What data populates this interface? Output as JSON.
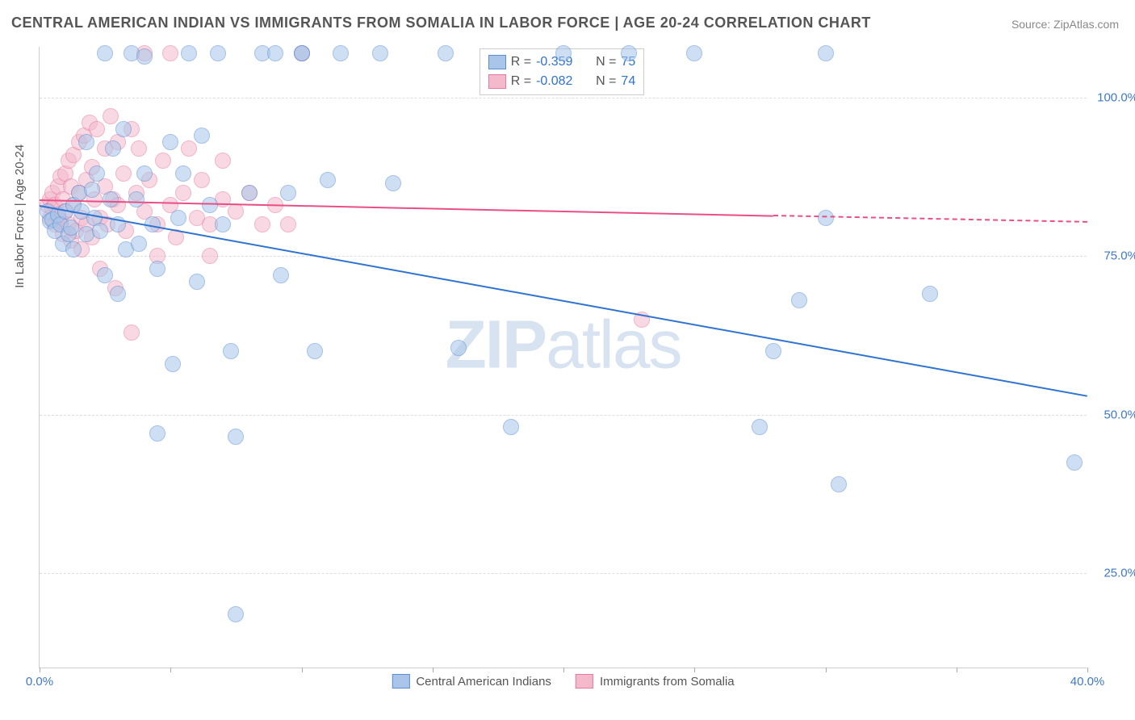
{
  "title": "CENTRAL AMERICAN INDIAN VS IMMIGRANTS FROM SOMALIA IN LABOR FORCE | AGE 20-24 CORRELATION CHART",
  "source": "Source: ZipAtlas.com",
  "watermark_bold": "ZIP",
  "watermark_light": "atlas",
  "y_axis_label": "In Labor Force | Age 20-24",
  "chart": {
    "type": "scatter",
    "xlim": [
      0,
      40
    ],
    "ylim": [
      10,
      108
    ],
    "x_ticks": [
      0,
      5,
      10,
      15,
      20,
      25,
      30,
      35,
      40
    ],
    "x_tick_labels": {
      "0": "0.0%",
      "40": "40.0%"
    },
    "y_ticks": [
      25,
      50,
      75,
      100
    ],
    "y_tick_labels": {
      "25": "25.0%",
      "50": "50.0%",
      "75": "75.0%",
      "100": "100.0%"
    },
    "y_tick_color": "#3e78c7",
    "x_tick_color": "#3e78c7",
    "grid_color": "#dddddd",
    "background": "#ffffff",
    "marker_radius": 10,
    "marker_opacity": 0.55,
    "series": [
      {
        "name": "Central American Indians",
        "fill": "#a9c6ea",
        "stroke": "#5a8fd6",
        "line_color": "#2f73d1",
        "R": "-0.359",
        "N": "75",
        "trend": {
          "x1": 0,
          "y1": 83,
          "x2": 40,
          "y2": 53
        },
        "points": [
          [
            0.3,
            82
          ],
          [
            0.4,
            80.5
          ],
          [
            0.5,
            80.8
          ],
          [
            0.6,
            79
          ],
          [
            0.7,
            81.5
          ],
          [
            0.8,
            80
          ],
          [
            0.9,
            77
          ],
          [
            1.0,
            82
          ],
          [
            1.1,
            78.5
          ],
          [
            1.2,
            79.5
          ],
          [
            1.3,
            83
          ],
          [
            1.3,
            76
          ],
          [
            1.5,
            85
          ],
          [
            1.6,
            82
          ],
          [
            1.8,
            93
          ],
          [
            1.8,
            78.5
          ],
          [
            2.0,
            85.5
          ],
          [
            2.1,
            81
          ],
          [
            2.2,
            88
          ],
          [
            2.3,
            79
          ],
          [
            2.5,
            107
          ],
          [
            2.5,
            72
          ],
          [
            2.7,
            84
          ],
          [
            2.8,
            92
          ],
          [
            3.0,
            80
          ],
          [
            3.0,
            69
          ],
          [
            3.2,
            95
          ],
          [
            3.3,
            76
          ],
          [
            3.5,
            107
          ],
          [
            3.7,
            84
          ],
          [
            3.8,
            77
          ],
          [
            4.0,
            88
          ],
          [
            4.0,
            106.5
          ],
          [
            4.3,
            80
          ],
          [
            4.5,
            73
          ],
          [
            4.5,
            47
          ],
          [
            5.0,
            93
          ],
          [
            5.1,
            58
          ],
          [
            5.3,
            81
          ],
          [
            5.5,
            88
          ],
          [
            5.7,
            107
          ],
          [
            6.0,
            71
          ],
          [
            6.2,
            94
          ],
          [
            6.5,
            83
          ],
          [
            6.8,
            107
          ],
          [
            7.0,
            80
          ],
          [
            7.3,
            60
          ],
          [
            7.5,
            46.5
          ],
          [
            7.5,
            18.5
          ],
          [
            8.0,
            85
          ],
          [
            8.5,
            107
          ],
          [
            9.0,
            107
          ],
          [
            9.2,
            72
          ],
          [
            9.5,
            85
          ],
          [
            10.0,
            107
          ],
          [
            10.0,
            107
          ],
          [
            10.5,
            60
          ],
          [
            11.0,
            87
          ],
          [
            11.5,
            107
          ],
          [
            13.0,
            107
          ],
          [
            13.5,
            86.5
          ],
          [
            15.5,
            107
          ],
          [
            16.0,
            60.5
          ],
          [
            18.0,
            48
          ],
          [
            20.0,
            107
          ],
          [
            22.5,
            107
          ],
          [
            25.0,
            107
          ],
          [
            27.5,
            48
          ],
          [
            28.0,
            60
          ],
          [
            29.0,
            68
          ],
          [
            30.5,
            39
          ],
          [
            30.0,
            81
          ],
          [
            30.0,
            107
          ],
          [
            34.0,
            69
          ],
          [
            39.5,
            42.5
          ]
        ]
      },
      {
        "name": "Immigrants from Somalia",
        "fill": "#f4b9cb",
        "stroke": "#e77aa0",
        "line_color": "#e94f86",
        "R": "-0.082",
        "N": "74",
        "trend": {
          "x1": 0,
          "y1": 84,
          "x2": 28,
          "y2": 81.5
        },
        "trend_dash": {
          "x1": 28,
          "y1": 81.5,
          "x2": 40,
          "y2": 80.5
        },
        "points": [
          [
            0.3,
            83
          ],
          [
            0.4,
            81
          ],
          [
            0.4,
            84
          ],
          [
            0.5,
            82.5
          ],
          [
            0.5,
            85
          ],
          [
            0.6,
            80
          ],
          [
            0.6,
            83
          ],
          [
            0.7,
            86
          ],
          [
            0.7,
            81
          ],
          [
            0.8,
            87.5
          ],
          [
            0.8,
            80.5
          ],
          [
            0.9,
            84
          ],
          [
            0.9,
            78.5
          ],
          [
            1.0,
            88
          ],
          [
            1.0,
            82
          ],
          [
            1.1,
            90
          ],
          [
            1.1,
            80
          ],
          [
            1.2,
            86
          ],
          [
            1.2,
            77.5
          ],
          [
            1.3,
            91
          ],
          [
            1.3,
            83
          ],
          [
            1.4,
            79
          ],
          [
            1.5,
            93
          ],
          [
            1.5,
            85
          ],
          [
            1.6,
            81
          ],
          [
            1.6,
            76
          ],
          [
            1.7,
            94
          ],
          [
            1.8,
            87
          ],
          [
            1.8,
            80
          ],
          [
            1.9,
            96
          ],
          [
            2.0,
            89
          ],
          [
            2.0,
            78
          ],
          [
            2.1,
            84
          ],
          [
            2.2,
            95
          ],
          [
            2.3,
            81
          ],
          [
            2.3,
            73
          ],
          [
            2.5,
            92
          ],
          [
            2.5,
            86
          ],
          [
            2.6,
            80
          ],
          [
            2.7,
            97
          ],
          [
            2.8,
            84
          ],
          [
            2.9,
            70
          ],
          [
            3.0,
            93
          ],
          [
            3.0,
            83
          ],
          [
            3.2,
            88
          ],
          [
            3.3,
            79
          ],
          [
            3.5,
            95
          ],
          [
            3.5,
            63
          ],
          [
            3.7,
            85
          ],
          [
            3.8,
            92
          ],
          [
            4.0,
            82
          ],
          [
            4.0,
            107
          ],
          [
            4.2,
            87
          ],
          [
            4.5,
            80
          ],
          [
            4.5,
            75
          ],
          [
            4.7,
            90
          ],
          [
            5.0,
            83
          ],
          [
            5.0,
            107
          ],
          [
            5.2,
            78
          ],
          [
            5.5,
            85
          ],
          [
            5.7,
            92
          ],
          [
            6.0,
            81
          ],
          [
            6.2,
            87
          ],
          [
            6.5,
            80
          ],
          [
            6.5,
            75
          ],
          [
            7.0,
            84
          ],
          [
            7.0,
            90
          ],
          [
            7.5,
            82
          ],
          [
            8.0,
            85
          ],
          [
            8.5,
            80
          ],
          [
            9.0,
            83
          ],
          [
            9.5,
            80
          ],
          [
            10.0,
            107
          ],
          [
            23.0,
            65
          ]
        ]
      }
    ]
  },
  "legend_top": {
    "r_label": "R =",
    "n_label": "N ="
  },
  "legend_bottom": {
    "series1": "Central American Indians",
    "series2": "Immigrants from Somalia"
  }
}
